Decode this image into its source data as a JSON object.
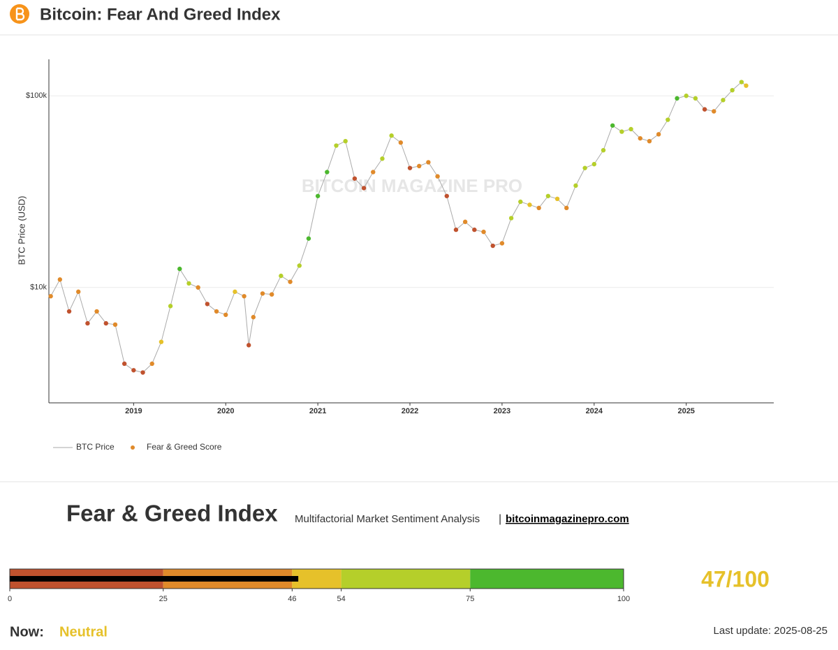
{
  "header": {
    "title": "Bitcoin: Fear And Greed Index"
  },
  "chart_data": {
    "type": "scatter-line",
    "y_label": "BTC Price (USD)",
    "watermark": "BITCOIN MAGAZINE PRO",
    "log_y": true,
    "grid": true,
    "xlim": [
      2018.08,
      2025.95
    ],
    "xticks": [
      2019,
      2020,
      2021,
      2022,
      2023,
      2024,
      2025
    ],
    "ylim": [
      2500,
      155000
    ],
    "yticks": [
      {
        "value": 10000,
        "label": "$10k"
      },
      {
        "value": 100000,
        "label": "$100k"
      }
    ],
    "x": [
      2018.1,
      2018.2,
      2018.3,
      2018.4,
      2018.5,
      2018.6,
      2018.7,
      2018.8,
      2018.9,
      2019.0,
      2019.1,
      2019.2,
      2019.3,
      2019.4,
      2019.5,
      2019.6,
      2019.7,
      2019.8,
      2019.9,
      2020.0,
      2020.1,
      2020.2,
      2020.25,
      2020.3,
      2020.4,
      2020.5,
      2020.6,
      2020.7,
      2020.8,
      2020.9,
      2021.0,
      2021.1,
      2021.2,
      2021.3,
      2021.4,
      2021.5,
      2021.6,
      2021.7,
      2021.8,
      2021.9,
      2022.0,
      2022.1,
      2022.2,
      2022.3,
      2022.4,
      2022.5,
      2022.6,
      2022.7,
      2022.8,
      2022.9,
      2023.0,
      2023.1,
      2023.2,
      2023.3,
      2023.4,
      2023.5,
      2023.6,
      2023.7,
      2023.8,
      2023.9,
      2024.0,
      2024.1,
      2024.2,
      2024.3,
      2024.4,
      2024.5,
      2024.6,
      2024.7,
      2024.8,
      2024.9,
      2025.0,
      2025.1,
      2025.2,
      2025.3,
      2025.4,
      2025.5,
      2025.6,
      2025.65
    ],
    "series": [
      {
        "name": "BTC Price",
        "color": "#aaaaaa",
        "values": [
          9000,
          11000,
          7500,
          9500,
          6500,
          7500,
          6500,
          6400,
          4000,
          3700,
          3600,
          4000,
          5200,
          8000,
          12500,
          10500,
          10000,
          8200,
          7500,
          7200,
          9500,
          9000,
          5000,
          7000,
          9300,
          9200,
          11500,
          10700,
          13000,
          18000,
          30000,
          40000,
          55000,
          58000,
          37000,
          33000,
          40000,
          47000,
          62000,
          57000,
          42000,
          43000,
          45000,
          38000,
          30000,
          20000,
          22000,
          20000,
          19500,
          16500,
          17000,
          23000,
          28000,
          27000,
          26000,
          30000,
          29000,
          26000,
          34000,
          42000,
          44000,
          52000,
          70000,
          65000,
          67000,
          60000,
          58000,
          63000,
          75000,
          97000,
          100000,
          97000,
          85000,
          83000,
          95000,
          107000,
          118000,
          113000
        ]
      },
      {
        "name": "Fear & Greed Score",
        "color": "#e08a2a",
        "values": [
          30,
          45,
          20,
          40,
          20,
          35,
          25,
          30,
          10,
          15,
          25,
          40,
          50,
          65,
          80,
          55,
          40,
          25,
          30,
          35,
          50,
          40,
          10,
          30,
          45,
          40,
          65,
          45,
          60,
          80,
          90,
          85,
          75,
          70,
          20,
          25,
          45,
          60,
          70,
          45,
          25,
          40,
          45,
          30,
          15,
          10,
          30,
          25,
          30,
          15,
          30,
          55,
          60,
          50,
          45,
          55,
          50,
          40,
          65,
          72,
          65,
          75,
          85,
          60,
          60,
          40,
          35,
          45,
          70,
          85,
          75,
          55,
          25,
          30,
          55,
          65,
          70,
          50
        ]
      }
    ]
  },
  "panel": {
    "title": "Fear & Greed Index",
    "subtitle": "Multifactorial Market Sentiment Analysis",
    "separator": "|",
    "link": "bitcoinmagazinepro.com",
    "now_label": "Now:",
    "now_value": "Neutral",
    "last_update": "Last update: 2025-08-25"
  },
  "gauge": {
    "value": 47,
    "value_label": "47/100",
    "ticks": [
      0,
      25,
      46,
      54,
      75,
      100
    ],
    "colors": [
      "#c0522e",
      "#e08a2a",
      "#e6c12a",
      "#b5cf2a",
      "#4cb82e"
    ],
    "bar_color": "#000000"
  }
}
